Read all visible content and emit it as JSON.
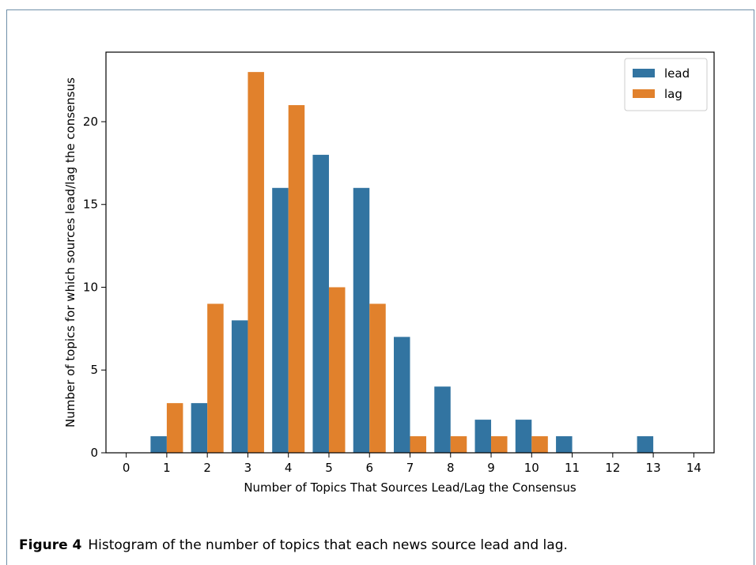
{
  "figure": {
    "label": "Figure 4",
    "caption": "Histogram of the number of topics that each news source lead and lag."
  },
  "colors": {
    "lead": "#3274a1",
    "lag": "#e1812c"
  },
  "chart_data": {
    "type": "bar",
    "title": "",
    "xlabel": "Number of Topics That Sources Lead/Lag the Consensus",
    "ylabel": "Number of topics for which sources lead/lag the consensus",
    "categories": [
      "0",
      "1",
      "2",
      "3",
      "4",
      "5",
      "6",
      "7",
      "8",
      "9",
      "10",
      "11",
      "12",
      "13",
      "14"
    ],
    "series": [
      {
        "name": "lead",
        "values": [
          0,
          1,
          3,
          8,
          16,
          18,
          16,
          7,
          4,
          2,
          2,
          1,
          0,
          1,
          0
        ]
      },
      {
        "name": "lag",
        "values": [
          0,
          3,
          9,
          23,
          21,
          10,
          9,
          1,
          1,
          1,
          1,
          0,
          0,
          0,
          0
        ]
      }
    ],
    "ylim": [
      0,
      24.2
    ],
    "yticks": [
      0,
      5,
      10,
      15,
      20
    ],
    "grid": false,
    "legend_position": "top-right"
  }
}
